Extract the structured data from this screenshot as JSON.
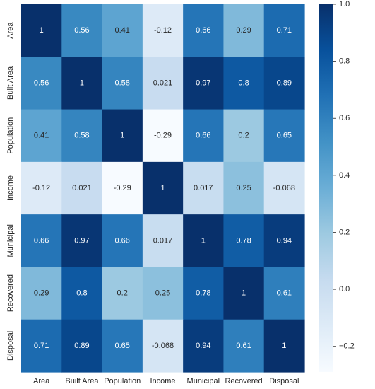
{
  "chart_data": {
    "type": "heatmap",
    "title": "",
    "xlabel": "",
    "ylabel": "",
    "colormap": "Blues",
    "x_categories": [
      "Area",
      "Built Area",
      "Population",
      "Income",
      "Municipal",
      "Recovered",
      "Disposal"
    ],
    "y_categories": [
      "Area",
      "Built Area",
      "Population",
      "Income",
      "Municipal",
      "Recovered",
      "Disposal"
    ],
    "matrix": [
      [
        1,
        0.56,
        0.41,
        -0.12,
        0.66,
        0.29,
        0.71
      ],
      [
        0.56,
        1,
        0.58,
        0.021,
        0.97,
        0.8,
        0.89
      ],
      [
        0.41,
        0.58,
        1,
        -0.29,
        0.66,
        0.2,
        0.65
      ],
      [
        -0.12,
        0.021,
        -0.29,
        1,
        0.017,
        0.25,
        -0.068
      ],
      [
        0.66,
        0.97,
        0.66,
        0.017,
        1,
        0.78,
        0.94
      ],
      [
        0.29,
        0.8,
        0.2,
        0.25,
        0.78,
        1,
        0.61
      ],
      [
        0.71,
        0.89,
        0.65,
        -0.068,
        0.94,
        0.61,
        1
      ]
    ],
    "cell_labels": [
      [
        "1",
        "0.56",
        "0.41",
        "-0.12",
        "0.66",
        "0.29",
        "0.71"
      ],
      [
        "0.56",
        "1",
        "0.58",
        "0.021",
        "0.97",
        "0.8",
        "0.89"
      ],
      [
        "0.41",
        "0.58",
        "1",
        "-0.29",
        "0.66",
        "0.2",
        "0.65"
      ],
      [
        "-0.12",
        "0.021",
        "-0.29",
        "1",
        "0.017",
        "0.25",
        "-0.068"
      ],
      [
        "0.66",
        "0.97",
        "0.66",
        "0.017",
        "1",
        "0.78",
        "0.94"
      ],
      [
        "0.29",
        "0.8",
        "0.2",
        "0.25",
        "0.78",
        "1",
        "0.61"
      ],
      [
        "0.71",
        "0.89",
        "0.65",
        "-0.068",
        "0.94",
        "0.61",
        "1"
      ]
    ],
    "colorbar": {
      "range": [
        -0.29,
        1
      ],
      "ticks": [
        -0.2,
        0.0,
        0.2,
        0.4,
        0.6,
        0.8,
        1.0
      ],
      "tick_labels": [
        "−0.2",
        "0.0",
        "0.2",
        "0.4",
        "0.6",
        "0.8",
        "1.0"
      ]
    },
    "grid": false,
    "legend": "colorbar-right"
  },
  "colors": {
    "low": "#f7fbff",
    "high": "#08306b",
    "text_dark": "#262626",
    "text_light": "#ffffff",
    "tick_text": "#262626"
  }
}
